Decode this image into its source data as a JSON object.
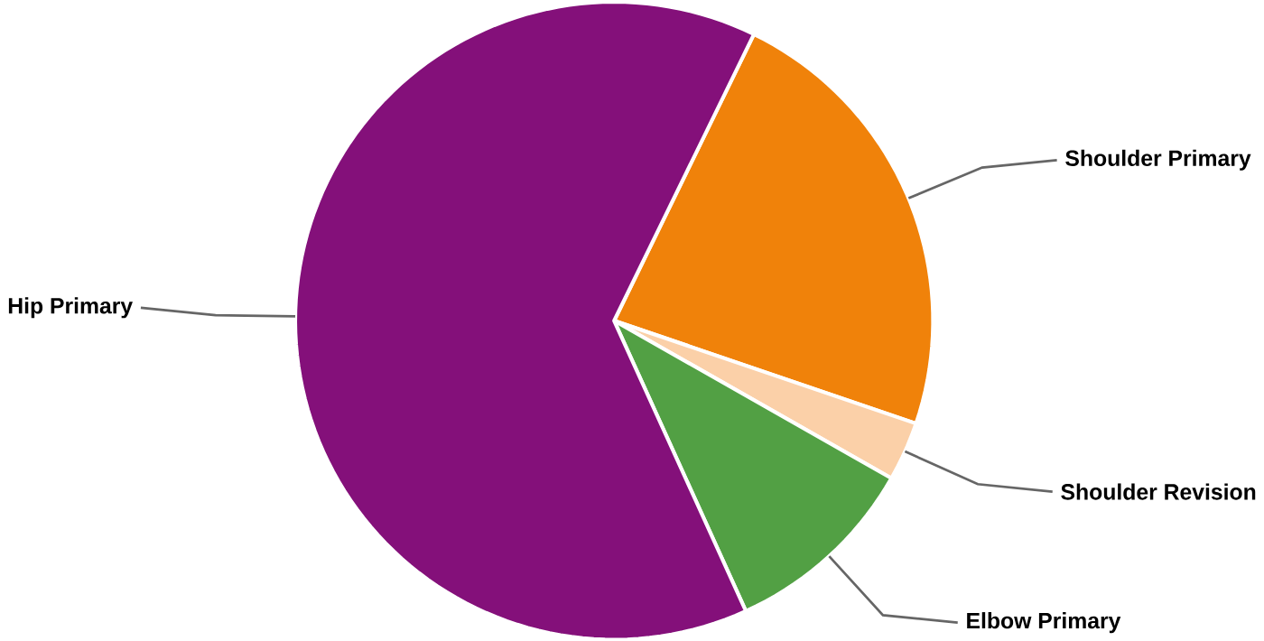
{
  "chart_data": {
    "type": "pie",
    "categories": [
      "Shoulder Primary",
      "Shoulder Revision",
      "Elbow Primary",
      "Hip Primary"
    ],
    "values": [
      23,
      3,
      10,
      64
    ],
    "colors": [
      "#f0820a",
      "#fbd0a8",
      "#52a044",
      "#84107a"
    ]
  }
}
